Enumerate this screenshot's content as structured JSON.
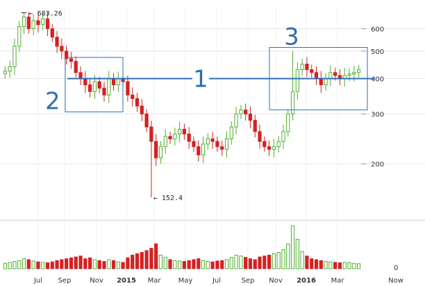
{
  "chart_data": {
    "type": "candlestick",
    "y_scale": "log",
    "ylim": [
      140,
      700
    ],
    "y_ticks": [
      {
        "value": 600,
        "label": "600"
      },
      {
        "value": 500,
        "label": "500"
      },
      {
        "value": 400,
        "label": "400"
      },
      {
        "value": 300,
        "label": "300"
      },
      {
        "value": 200,
        "label": "200"
      }
    ],
    "volume_tick_label": "0",
    "x_ticks": [
      "Jul",
      "Sep",
      "Nov",
      "2015",
      "Mar",
      "May",
      "Jul",
      "Sep",
      "Nov",
      "2016",
      "Mar",
      "Now"
    ],
    "annotations": {
      "high": {
        "label": "683.26",
        "value": 683.26
      },
      "low": {
        "label": "152.4",
        "value": 152.4
      }
    },
    "level_line": {
      "label": "1",
      "value": 400
    },
    "boxes": [
      {
        "label": "2",
        "y_top": 475,
        "y_bottom": 305
      },
      {
        "label": "3",
        "y_top": 515,
        "y_bottom": 310
      }
    ],
    "colors": {
      "up": "#4caf2a",
      "down": "#d32222",
      "level_line": "#2e6db4",
      "box": "#2e6db4",
      "grid": "#e6e6e6"
    },
    "close": [
      425,
      440,
      520,
      610,
      660,
      600,
      640,
      620,
      650,
      600,
      560,
      520,
      500,
      470,
      460,
      420,
      400,
      380,
      360,
      390,
      370,
      350,
      400,
      380,
      400,
      390,
      350,
      340,
      320,
      300,
      270,
      240,
      210,
      230,
      250,
      245,
      255,
      265,
      255,
      240,
      230,
      215,
      235,
      245,
      240,
      230,
      225,
      245,
      270,
      300,
      310,
      300,
      285,
      260,
      240,
      230,
      225,
      230,
      240,
      260,
      300,
      360,
      430,
      450,
      430,
      420,
      400,
      380,
      400,
      420,
      410,
      400,
      410,
      415,
      420,
      430
    ],
    "volume": [
      12,
      14,
      16,
      18,
      22,
      20,
      17,
      15,
      14,
      13,
      15,
      18,
      20,
      22,
      24,
      26,
      28,
      22,
      24,
      20,
      18,
      16,
      20,
      18,
      15,
      14,
      24,
      30,
      33,
      36,
      40,
      45,
      55,
      30,
      25,
      20,
      18,
      17,
      16,
      18,
      20,
      22,
      18,
      16,
      15,
      17,
      18,
      20,
      25,
      30,
      28,
      25,
      22,
      20,
      26,
      28,
      30,
      33,
      36,
      42,
      55,
      95,
      65,
      38,
      28,
      22,
      20,
      18,
      16,
      15,
      14,
      13,
      14,
      13,
      12,
      11
    ]
  }
}
